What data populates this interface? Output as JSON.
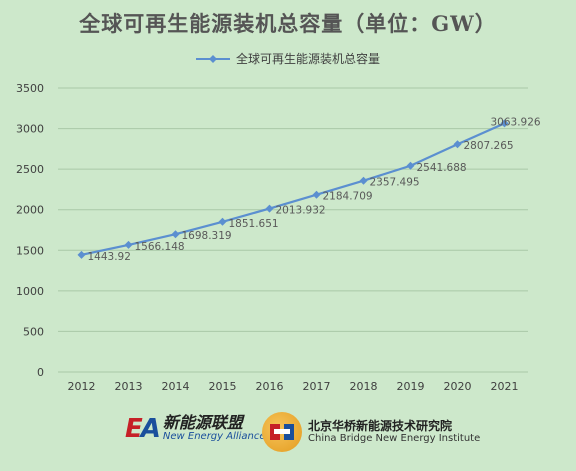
{
  "chart_data": {
    "type": "line",
    "title": "全球可再生能源装机总容量（单位：GW）",
    "xlabel": "",
    "ylabel": "",
    "categories": [
      "2012",
      "2013",
      "2014",
      "2015",
      "2016",
      "2017",
      "2018",
      "2019",
      "2020",
      "2021"
    ],
    "series": [
      {
        "name": "全球可再生能源装机总容量",
        "values": [
          1443.92,
          1566.148,
          1698.319,
          1851.651,
          2013.932,
          2184.709,
          2357.495,
          2541.688,
          2807.265,
          3063.926
        ],
        "labels": [
          "1443.92",
          "1566.148",
          "1698.319",
          "1851.651",
          "2013.932",
          "2184.709",
          "2357.495",
          "2541.688",
          "2807.265",
          "3063.926"
        ],
        "color": "#5b8fd0"
      }
    ],
    "ylim": [
      0,
      3500
    ],
    "yticks": [
      "0",
      "500",
      "1000",
      "1500",
      "2000",
      "2500",
      "3000",
      "3500"
    ],
    "grid": true,
    "legend_position": "top"
  },
  "logos": {
    "left": {
      "mark_red": "E",
      "mark_blue": "A",
      "name_cn": "新能源联盟",
      "name_en": "New Energy Alliance"
    },
    "right": {
      "name_cn": "北京华桥新能源技术研究院",
      "name_en": "China Bridge New Energy Institute",
      "icon": "china-bridge-emblem-icon"
    }
  },
  "colors": {
    "background": "#cde8cb",
    "gridline": "#a9c8a7",
    "series": "#5b8fd0",
    "label_text": "#595959"
  }
}
